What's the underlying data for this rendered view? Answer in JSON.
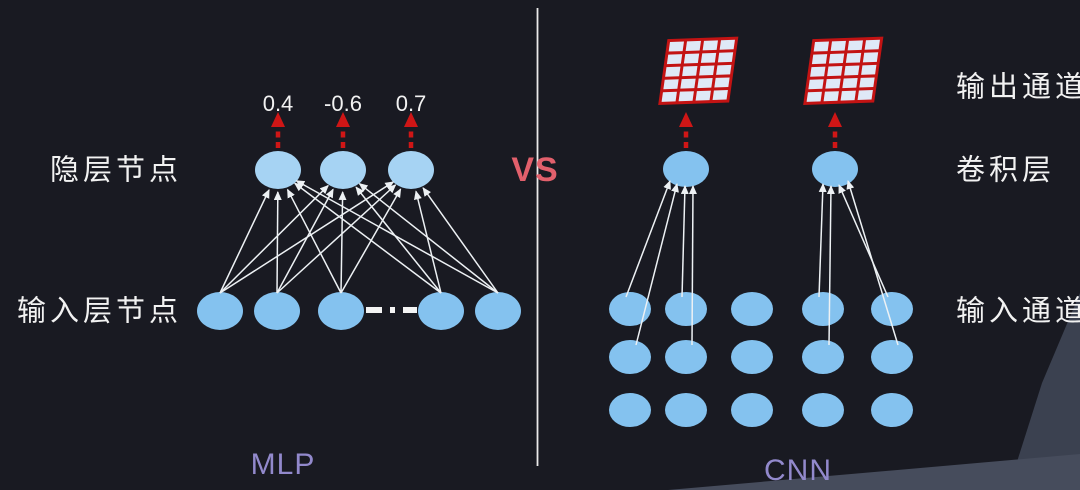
{
  "vs_label": "VS",
  "colors": {
    "background": "#191a22",
    "node_blue": "#84c2ef",
    "hidden_node_blue": "#a6d3f3",
    "connection_white": "#edf1f4",
    "red_arrow": "#cf1616",
    "grid_line_red": "#c31313",
    "grid_cell": "#dfe9f7",
    "vs_pink": "#e2606c",
    "caption_purple": "#9289cc",
    "divider_white": "#e9e9e9",
    "facet_gray": "#434a5a"
  },
  "mlp": {
    "caption": "MLP",
    "hidden_layer_label": "隐层节点",
    "input_layer_label": "输入层节点",
    "weights": [
      "0.4",
      "-0.6",
      "0.7"
    ],
    "hidden_node_count": 3,
    "input_node_count": 5,
    "ellipsis_mark": "–·–"
  },
  "cnn": {
    "caption": "CNN",
    "output_channel_label": "输出通道",
    "conv_layer_label": "卷积层",
    "input_channel_label": "输入通道",
    "conv_node_count": 2,
    "input_grid": {
      "rows": 3,
      "cols": 5
    },
    "output_feature_maps": {
      "count": 2,
      "grid_rows": 5,
      "grid_cols": 4
    }
  }
}
